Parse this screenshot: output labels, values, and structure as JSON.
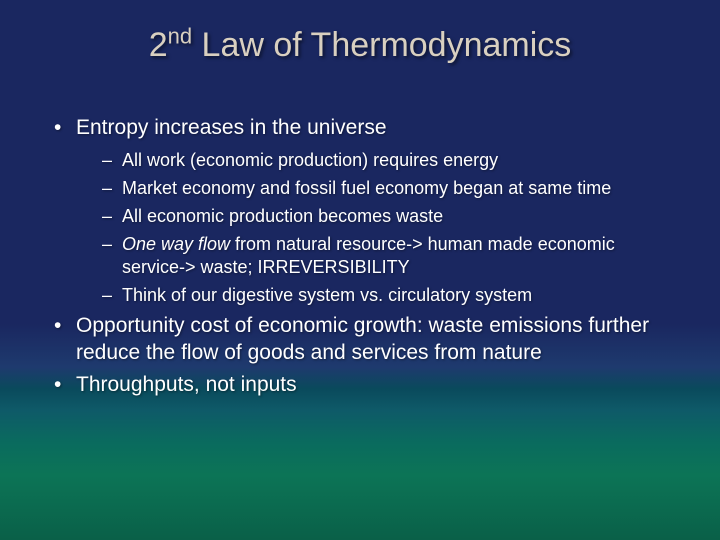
{
  "colors": {
    "title_color": "#d9d0c0",
    "text_color": "#ffffff",
    "bg_gradient_stops": [
      "#1a2760",
      "#1a2760",
      "#1e3a6e",
      "#0a4a5c",
      "#0e5a68",
      "#0a6b5e",
      "#0c7456",
      "#0a6048"
    ]
  },
  "typography": {
    "title_fontsize": 34,
    "level1_fontsize": 21,
    "level2_fontsize": 18,
    "font_family": "Arial"
  },
  "title": {
    "prefix": "2",
    "super": "nd",
    "rest": " Law of Thermodynamics"
  },
  "bullets": {
    "b1": "Entropy increases in the universe",
    "b1_children": {
      "c1": "All work (economic production) requires energy",
      "c2": "Market economy and fossil fuel economy began at same time",
      "c3": "All economic production becomes waste",
      "c4_italic": "One way flow",
      "c4_rest": " from natural resource-> human made economic service-> waste; IRREVERSIBILITY",
      "c5": "Think of our digestive system vs. circulatory system"
    },
    "b2": "Opportunity cost of economic growth: waste emissions further reduce the flow of goods and services from nature",
    "b3": "Throughputs, not inputs"
  }
}
